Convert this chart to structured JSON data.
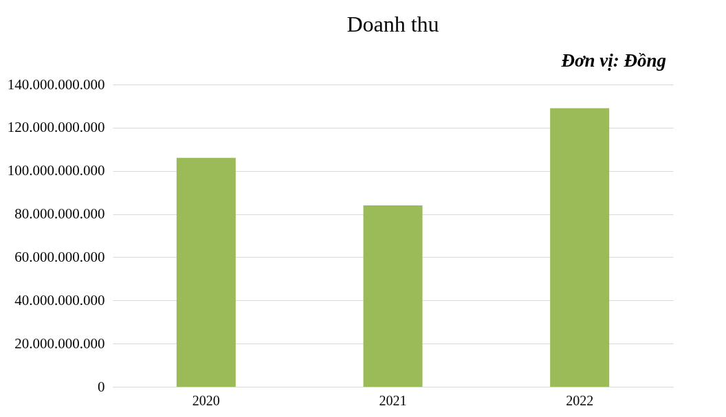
{
  "chart_data": {
    "type": "bar",
    "title": "Doanh thu",
    "annotations": [
      "Đơn vị: Đồng"
    ],
    "categories": [
      "2020",
      "2021",
      "2022"
    ],
    "values": [
      106000000000,
      84000000000,
      129000000000
    ],
    "color": "#9bbb59",
    "ylim": [
      0,
      140000000000
    ],
    "yticks": [
      {
        "value": 0,
        "label": "0"
      },
      {
        "value": 20000000000,
        "label": "20.000.000.000"
      },
      {
        "value": 40000000000,
        "label": "40.000.000.000"
      },
      {
        "value": 60000000000,
        "label": "60.000.000.000"
      },
      {
        "value": 80000000000,
        "label": "80.000.000.000"
      },
      {
        "value": 100000000000,
        "label": "100.000.000.000"
      },
      {
        "value": 120000000000,
        "label": "120.000.000.000"
      },
      {
        "value": 140000000000,
        "label": "140.000.000.000"
      }
    ],
    "grid": "y",
    "legend": false
  }
}
